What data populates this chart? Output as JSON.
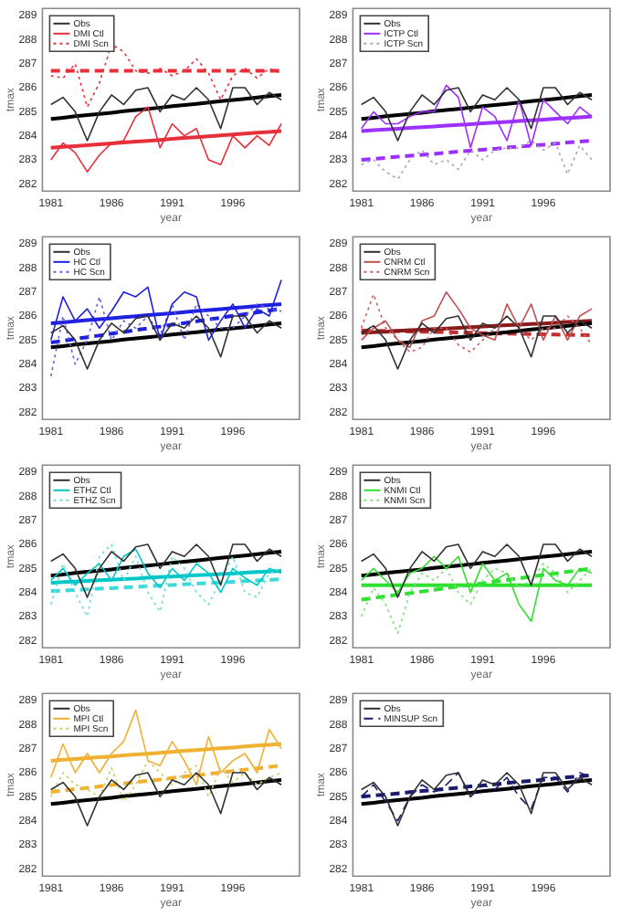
{
  "chart_data": [
    {
      "type": "line",
      "xlabel": "year",
      "ylabel": "tmax",
      "x": [
        1981,
        1982,
        1983,
        1984,
        1985,
        1986,
        1987,
        1988,
        1989,
        1990,
        1991,
        1992,
        1993,
        1994,
        1995,
        1996,
        1997,
        1998,
        1999,
        2000
      ],
      "xlim": [
        1980.3,
        2001.5
      ],
      "ylim": [
        281.7,
        289.3
      ],
      "xticks": [
        1981,
        1986,
        1991,
        1996
      ],
      "yticks": [
        282,
        283,
        284,
        285,
        286,
        287,
        288,
        289
      ],
      "legend": "top left",
      "marker": "none",
      "series": [
        {
          "name": "Obs",
          "color": "#303030",
          "line_style": "solid",
          "values": [
            285.3,
            285.6,
            285.0,
            283.8,
            285.0,
            285.7,
            285.3,
            285.9,
            286.0,
            285.0,
            285.7,
            285.5,
            286.0,
            285.5,
            284.3,
            286.0,
            286.0,
            285.3,
            285.8,
            285.5
          ]
        },
        {
          "name": "DMI Ctl",
          "color": "#e8303a",
          "line_style": "solid",
          "values": [
            283.0,
            283.7,
            283.3,
            282.5,
            283.2,
            283.7,
            283.8,
            284.8,
            285.2,
            283.5,
            284.5,
            284.0,
            284.3,
            283.0,
            282.8,
            284.0,
            283.5,
            284.0,
            283.6,
            284.5
          ]
        },
        {
          "name": "DMI Scn",
          "color": "#e8303a",
          "line_style": "dotted",
          "values": [
            286.5,
            286.4,
            287.0,
            285.2,
            286.2,
            287.8,
            287.5,
            286.7,
            286.6,
            286.8,
            286.5,
            286.7,
            287.2,
            286.6,
            285.5,
            286.5,
            286.8,
            286.4,
            286.8,
            286.6
          ]
        },
        {
          "color": "#000000",
          "line_style": "solid",
          "values": [
            284.7,
            284.75,
            284.81,
            284.86,
            284.91,
            284.96,
            285.02,
            285.07,
            285.12,
            285.17,
            285.23,
            285.28,
            285.33,
            285.38,
            285.44,
            285.49,
            285.54,
            285.59,
            285.65,
            285.7
          ]
        },
        {
          "color": "#e8303a",
          "line_style": "solid",
          "values": [
            283.5,
            283.54,
            283.57,
            283.61,
            283.65,
            283.68,
            283.72,
            283.76,
            283.79,
            283.83,
            283.87,
            283.91,
            283.94,
            283.98,
            284.02,
            284.05,
            284.09,
            284.13,
            284.16,
            284.2
          ]
        },
        {
          "color": "#e8303a",
          "line_style": "dashed",
          "values": [
            286.7,
            286.7,
            286.7,
            286.7,
            286.7,
            286.7,
            286.7,
            286.7,
            286.7,
            286.7,
            286.7,
            286.7,
            286.7,
            286.7,
            286.7,
            286.7,
            286.7,
            286.7,
            286.7,
            286.7
          ]
        }
      ]
    },
    {
      "type": "line",
      "xlabel": "year",
      "ylabel": "tmax",
      "x": [
        1981,
        1982,
        1983,
        1984,
        1985,
        1986,
        1987,
        1988,
        1989,
        1990,
        1991,
        1992,
        1993,
        1994,
        1995,
        1996,
        1997,
        1998,
        1999,
        2000
      ],
      "xlim": [
        1980.3,
        2001.5
      ],
      "ylim": [
        281.7,
        289.3
      ],
      "xticks": [
        1981,
        1986,
        1991,
        1996
      ],
      "yticks": [
        282,
        283,
        284,
        285,
        286,
        287,
        288,
        289
      ],
      "legend": "top left",
      "marker": "none",
      "series": [
        {
          "name": "Obs",
          "color": "#303030",
          "line_style": "solid",
          "values": [
            285.3,
            285.6,
            285.0,
            283.8,
            285.0,
            285.7,
            285.3,
            285.9,
            286.0,
            285.0,
            285.7,
            285.5,
            286.0,
            285.5,
            284.3,
            286.0,
            286.0,
            285.3,
            285.8,
            285.5
          ]
        },
        {
          "name": "ICTP Ctl",
          "color": "#9b30ff",
          "line_style": "solid",
          "values": [
            284.3,
            285.0,
            284.5,
            284.5,
            284.8,
            285.0,
            285.0,
            286.1,
            285.6,
            283.5,
            285.2,
            284.8,
            283.8,
            285.5,
            283.6,
            285.5,
            285.0,
            284.5,
            285.2,
            284.8
          ]
        },
        {
          "name": "ICTP Scn",
          "color": "#b0a0c0",
          "line_style": "dotted",
          "values": [
            282.8,
            283.0,
            282.5,
            282.2,
            283.0,
            283.4,
            282.8,
            283.0,
            282.6,
            283.4,
            283.0,
            283.4,
            283.5,
            283.5,
            283.8,
            283.4,
            283.7,
            282.4,
            283.6,
            283.0
          ]
        },
        {
          "color": "#000000",
          "line_style": "solid",
          "values": [
            284.7,
            284.75,
            284.81,
            284.86,
            284.91,
            284.96,
            285.02,
            285.07,
            285.12,
            285.17,
            285.23,
            285.28,
            285.33,
            285.38,
            285.44,
            285.49,
            285.54,
            285.59,
            285.65,
            285.7
          ]
        },
        {
          "color": "#9b30ff",
          "line_style": "solid",
          "values": [
            284.2,
            284.23,
            284.26,
            284.29,
            284.33,
            284.36,
            284.39,
            284.42,
            284.45,
            284.48,
            284.52,
            284.55,
            284.58,
            284.61,
            284.64,
            284.67,
            284.71,
            284.74,
            284.77,
            284.8
          ]
        },
        {
          "color": "#9b30ff",
          "line_style": "dashed",
          "values": [
            283.0,
            283.04,
            283.08,
            283.13,
            283.17,
            283.21,
            283.25,
            283.29,
            283.34,
            283.38,
            283.42,
            283.46,
            283.51,
            283.55,
            283.59,
            283.63,
            283.67,
            283.72,
            283.76,
            283.8
          ]
        }
      ]
    },
    {
      "type": "line",
      "xlabel": "year",
      "ylabel": "tmax",
      "x": [
        1981,
        1982,
        1983,
        1984,
        1985,
        1986,
        1987,
        1988,
        1989,
        1990,
        1991,
        1992,
        1993,
        1994,
        1995,
        1996,
        1997,
        1998,
        1999,
        2000
      ],
      "xlim": [
        1980.3,
        2001.5
      ],
      "ylim": [
        281.7,
        289.3
      ],
      "xticks": [
        1981,
        1986,
        1991,
        1996
      ],
      "yticks": [
        282,
        283,
        284,
        285,
        286,
        287,
        288,
        289
      ],
      "legend": "top left",
      "marker": "none",
      "series": [
        {
          "name": "Obs",
          "color": "#303030",
          "line_style": "solid",
          "values": [
            285.3,
            285.6,
            285.0,
            283.8,
            285.0,
            285.7,
            285.3,
            285.9,
            286.0,
            285.0,
            285.7,
            285.5,
            286.0,
            285.5,
            284.3,
            286.0,
            286.0,
            285.3,
            285.8,
            285.5
          ]
        },
        {
          "name": "HC Ctl",
          "color": "#2020e0",
          "line_style": "solid",
          "values": [
            285.0,
            286.8,
            285.8,
            286.3,
            285.5,
            286.2,
            287.0,
            286.8,
            287.2,
            285.0,
            286.5,
            287.0,
            286.8,
            285.0,
            285.8,
            286.5,
            285.5,
            286.3,
            286.0,
            287.5
          ]
        },
        {
          "name": "HC Scn",
          "color": "#6060e8",
          "line_style": "dotted",
          "values": [
            283.5,
            286.0,
            284.0,
            285.0,
            286.8,
            285.0,
            285.8,
            285.5,
            286.0,
            285.2,
            286.5,
            285.0,
            286.5,
            286.0,
            285.5,
            285.5,
            286.0,
            286.5,
            286.3,
            286.2
          ]
        },
        {
          "color": "#000000",
          "line_style": "solid",
          "values": [
            284.7,
            284.75,
            284.81,
            284.86,
            284.91,
            284.96,
            285.02,
            285.07,
            285.12,
            285.17,
            285.23,
            285.28,
            285.33,
            285.38,
            285.44,
            285.49,
            285.54,
            285.59,
            285.65,
            285.7
          ]
        },
        {
          "color": "#2020e0",
          "line_style": "solid",
          "values": [
            285.7,
            285.74,
            285.78,
            285.83,
            285.87,
            285.91,
            285.95,
            285.99,
            286.04,
            286.08,
            286.12,
            286.16,
            286.21,
            286.25,
            286.29,
            286.33,
            286.37,
            286.42,
            286.46,
            286.5
          ]
        },
        {
          "color": "#2020e0",
          "line_style": "dashed",
          "values": [
            284.9,
            284.97,
            285.05,
            285.12,
            285.19,
            285.27,
            285.34,
            285.42,
            285.49,
            285.56,
            285.64,
            285.71,
            285.78,
            285.86,
            285.93,
            286.01,
            286.08,
            286.15,
            286.23,
            286.3
          ]
        }
      ]
    },
    {
      "type": "line",
      "xlabel": "year",
      "ylabel": "tmax",
      "x": [
        1981,
        1982,
        1983,
        1984,
        1985,
        1986,
        1987,
        1988,
        1989,
        1990,
        1991,
        1992,
        1993,
        1994,
        1995,
        1996,
        1997,
        1998,
        1999,
        2000
      ],
      "xlim": [
        1980.3,
        2001.5
      ],
      "ylim": [
        281.7,
        289.3
      ],
      "xticks": [
        1981,
        1986,
        1991,
        1996
      ],
      "yticks": [
        282,
        283,
        284,
        285,
        286,
        287,
        288,
        289
      ],
      "legend": "top left",
      "marker": "none",
      "series": [
        {
          "name": "Obs",
          "color": "#303030",
          "line_style": "solid",
          "values": [
            285.3,
            285.6,
            285.0,
            283.8,
            285.0,
            285.7,
            285.3,
            285.9,
            286.0,
            285.0,
            285.7,
            285.5,
            286.0,
            285.5,
            284.3,
            286.0,
            286.0,
            285.3,
            285.8,
            285.5
          ]
        },
        {
          "name": "CNRM Ctl",
          "color": "#c05050",
          "line_style": "solid",
          "values": [
            285.0,
            285.5,
            285.8,
            285.0,
            284.7,
            285.8,
            286.0,
            287.0,
            286.3,
            285.5,
            285.2,
            285.0,
            286.5,
            285.5,
            286.5,
            285.0,
            286.0,
            285.0,
            286.0,
            286.3
          ]
        },
        {
          "name": "CNRM Scn",
          "color": "#d06060",
          "line_style": "dotted",
          "values": [
            285.5,
            286.9,
            285.5,
            285.0,
            284.5,
            284.7,
            285.5,
            285.5,
            284.8,
            284.5,
            285.0,
            285.5,
            286.0,
            285.5,
            285.0,
            285.5,
            285.5,
            286.0,
            285.5,
            284.8
          ]
        },
        {
          "color": "#000000",
          "line_style": "solid",
          "values": [
            284.7,
            284.75,
            284.81,
            284.86,
            284.91,
            284.96,
            285.02,
            285.07,
            285.12,
            285.17,
            285.23,
            285.28,
            285.33,
            285.38,
            285.44,
            285.49,
            285.54,
            285.59,
            285.65,
            285.7
          ]
        },
        {
          "color": "#8b1a1a",
          "line_style": "solid",
          "values": [
            285.3,
            285.33,
            285.35,
            285.38,
            285.41,
            285.43,
            285.46,
            285.48,
            285.51,
            285.54,
            285.56,
            285.59,
            285.62,
            285.64,
            285.67,
            285.69,
            285.72,
            285.75,
            285.77,
            285.8
          ]
        },
        {
          "color": "#c03030",
          "line_style": "dashed",
          "values": [
            285.4,
            285.39,
            285.38,
            285.37,
            285.36,
            285.35,
            285.34,
            285.33,
            285.32,
            285.31,
            285.29,
            285.28,
            285.27,
            285.26,
            285.25,
            285.24,
            285.23,
            285.22,
            285.21,
            285.2
          ]
        }
      ]
    },
    {
      "type": "line",
      "xlabel": "year",
      "ylabel": "tmax",
      "x": [
        1981,
        1982,
        1983,
        1984,
        1985,
        1986,
        1987,
        1988,
        1989,
        1990,
        1991,
        1992,
        1993,
        1994,
        1995,
        1996,
        1997,
        1998,
        1999,
        2000
      ],
      "xlim": [
        1980.3,
        2001.5
      ],
      "ylim": [
        281.7,
        289.3
      ],
      "xticks": [
        1981,
        1986,
        1991,
        1996
      ],
      "yticks": [
        282,
        283,
        284,
        285,
        286,
        287,
        288,
        289
      ],
      "legend": "top left",
      "marker": "none",
      "series": [
        {
          "name": "Obs",
          "color": "#303030",
          "line_style": "solid",
          "values": [
            285.3,
            285.6,
            285.0,
            283.8,
            285.0,
            285.7,
            285.3,
            285.9,
            286.0,
            285.0,
            285.7,
            285.5,
            286.0,
            285.5,
            284.3,
            286.0,
            286.0,
            285.3,
            285.8,
            285.5
          ]
        },
        {
          "name": "ETHZ Ctl",
          "color": "#00c8c8",
          "line_style": "solid",
          "values": [
            284.5,
            285.0,
            284.3,
            284.8,
            285.2,
            284.5,
            285.5,
            285.8,
            284.8,
            284.2,
            285.0,
            284.5,
            285.2,
            284.8,
            284.0,
            285.0,
            284.6,
            284.3,
            285.0,
            284.8
          ]
        },
        {
          "name": "ETHZ Scn",
          "color": "#70dcdc",
          "line_style": "dotted",
          "values": [
            283.5,
            285.2,
            284.0,
            283.0,
            285.5,
            286.0,
            284.5,
            285.5,
            284.0,
            283.2,
            285.5,
            285.0,
            284.0,
            283.5,
            284.5,
            285.5,
            284.0,
            283.8,
            284.8,
            285.0
          ]
        },
        {
          "color": "#000000",
          "line_style": "solid",
          "values": [
            284.7,
            284.75,
            284.81,
            284.86,
            284.91,
            284.96,
            285.02,
            285.07,
            285.12,
            285.17,
            285.23,
            285.28,
            285.33,
            285.38,
            285.44,
            285.49,
            285.54,
            285.59,
            285.65,
            285.7
          ]
        },
        {
          "color": "#00c8c8",
          "line_style": "solid",
          "values": [
            284.4,
            284.43,
            284.45,
            284.48,
            284.51,
            284.53,
            284.56,
            284.58,
            284.61,
            284.64,
            284.66,
            284.69,
            284.72,
            284.74,
            284.77,
            284.79,
            284.82,
            284.85,
            284.87,
            284.9
          ]
        },
        {
          "color": "#40d8d8",
          "line_style": "dashed",
          "values": [
            284.05,
            284.08,
            284.1,
            284.13,
            284.16,
            284.18,
            284.21,
            284.23,
            284.26,
            284.29,
            284.31,
            284.34,
            284.37,
            284.39,
            284.42,
            284.44,
            284.47,
            284.5,
            284.52,
            284.55
          ]
        }
      ]
    },
    {
      "type": "line",
      "xlabel": "year",
      "ylabel": "tmax",
      "x": [
        1981,
        1982,
        1983,
        1984,
        1985,
        1986,
        1987,
        1988,
        1989,
        1990,
        1991,
        1992,
        1993,
        1994,
        1995,
        1996,
        1997,
        1998,
        1999,
        2000
      ],
      "xlim": [
        1980.3,
        2001.5
      ],
      "ylim": [
        281.7,
        289.3
      ],
      "xticks": [
        1981,
        1986,
        1991,
        1996
      ],
      "yticks": [
        282,
        283,
        284,
        285,
        286,
        287,
        288,
        289
      ],
      "legend": "top left",
      "marker": "none",
      "series": [
        {
          "name": "Obs",
          "color": "#303030",
          "line_style": "solid",
          "values": [
            285.3,
            285.6,
            285.0,
            283.8,
            285.0,
            285.7,
            285.3,
            285.9,
            286.0,
            285.0,
            285.7,
            285.5,
            286.0,
            285.5,
            284.3,
            286.0,
            286.0,
            285.3,
            285.8,
            285.5
          ]
        },
        {
          "name": "KNMI Ctl",
          "color": "#30e030",
          "line_style": "solid",
          "values": [
            284.5,
            285.0,
            284.5,
            284.0,
            284.8,
            285.0,
            285.5,
            285.0,
            285.5,
            284.0,
            285.2,
            284.5,
            284.8,
            283.5,
            282.8,
            285.0,
            284.5,
            284.3,
            285.0,
            284.8
          ]
        },
        {
          "name": "KNMI Scn",
          "color": "#80e080",
          "line_style": "dotted",
          "values": [
            283.0,
            284.2,
            283.5,
            282.3,
            284.0,
            284.8,
            284.5,
            285.0,
            284.0,
            283.5,
            284.5,
            285.0,
            284.8,
            284.2,
            284.5,
            285.2,
            284.8,
            284.0,
            284.5,
            285.0
          ]
        },
        {
          "color": "#000000",
          "line_style": "solid",
          "values": [
            284.7,
            284.75,
            284.81,
            284.86,
            284.91,
            284.96,
            285.02,
            285.07,
            285.12,
            285.17,
            285.23,
            285.28,
            285.33,
            285.38,
            285.44,
            285.49,
            285.54,
            285.59,
            285.65,
            285.7
          ]
        },
        {
          "color": "#30e030",
          "line_style": "solid",
          "values": [
            284.3,
            284.3,
            284.3,
            284.3,
            284.3,
            284.3,
            284.3,
            284.3,
            284.3,
            284.3,
            284.3,
            284.3,
            284.3,
            284.3,
            284.3,
            284.3,
            284.3,
            284.3,
            284.3,
            284.3
          ]
        },
        {
          "color": "#30e030",
          "line_style": "dashed",
          "values": [
            283.7,
            283.77,
            283.84,
            283.91,
            283.97,
            284.04,
            284.11,
            284.18,
            284.25,
            284.32,
            284.38,
            284.45,
            284.52,
            284.59,
            284.66,
            284.73,
            284.79,
            284.86,
            284.93,
            285.0
          ]
        }
      ]
    },
    {
      "type": "line",
      "xlabel": "year",
      "ylabel": "tmax",
      "x": [
        1981,
        1982,
        1983,
        1984,
        1985,
        1986,
        1987,
        1988,
        1989,
        1990,
        1991,
        1992,
        1993,
        1994,
        1995,
        1996,
        1997,
        1998,
        1999,
        2000
      ],
      "xlim": [
        1980.3,
        2001.5
      ],
      "ylim": [
        281.7,
        289.3
      ],
      "xticks": [
        1981,
        1986,
        1991,
        1996
      ],
      "yticks": [
        282,
        283,
        284,
        285,
        286,
        287,
        288,
        289
      ],
      "legend": "top left",
      "marker": "none",
      "series": [
        {
          "name": "Obs",
          "color": "#303030",
          "line_style": "solid",
          "values": [
            285.3,
            285.6,
            285.0,
            283.8,
            285.0,
            285.7,
            285.3,
            285.9,
            286.0,
            285.0,
            285.7,
            285.5,
            286.0,
            285.5,
            284.3,
            286.0,
            286.0,
            285.3,
            285.8,
            285.5
          ]
        },
        {
          "name": "MPI Ctl",
          "color": "#f0b030",
          "line_style": "solid",
          "values": [
            285.8,
            287.2,
            286.0,
            286.8,
            286.0,
            286.8,
            287.3,
            288.6,
            286.5,
            286.3,
            287.3,
            286.5,
            285.5,
            287.5,
            286.0,
            286.5,
            286.8,
            286.0,
            287.8,
            287.0
          ]
        },
        {
          "name": "MPI Scn",
          "color": "#c8d060",
          "line_style": "dotted",
          "values": [
            285.0,
            286.0,
            285.5,
            285.3,
            285.0,
            286.2,
            284.8,
            285.5,
            286.5,
            286.0,
            285.5,
            286.0,
            286.3,
            285.0,
            286.2,
            285.6,
            286.0,
            285.5,
            285.8,
            286.0
          ]
        },
        {
          "color": "#000000",
          "line_style": "solid",
          "values": [
            284.7,
            284.75,
            284.81,
            284.86,
            284.91,
            284.96,
            285.02,
            285.07,
            285.12,
            285.17,
            285.23,
            285.28,
            285.33,
            285.38,
            285.44,
            285.49,
            285.54,
            285.59,
            285.65,
            285.7
          ]
        },
        {
          "color": "#f0b030",
          "line_style": "solid",
          "values": [
            286.5,
            286.54,
            286.57,
            286.61,
            286.65,
            286.68,
            286.72,
            286.76,
            286.79,
            286.83,
            286.87,
            286.91,
            286.94,
            286.98,
            287.02,
            287.05,
            287.09,
            287.13,
            287.16,
            287.2
          ]
        },
        {
          "color": "#f0b030",
          "line_style": "dashed",
          "values": [
            285.2,
            285.26,
            285.32,
            285.37,
            285.43,
            285.49,
            285.55,
            285.61,
            285.66,
            285.72,
            285.78,
            285.84,
            285.89,
            285.95,
            286.01,
            286.07,
            286.13,
            286.18,
            286.24,
            286.3
          ]
        }
      ]
    },
    {
      "type": "line",
      "xlabel": "year",
      "ylabel": "tmax",
      "x": [
        1981,
        1982,
        1983,
        1984,
        1985,
        1986,
        1987,
        1988,
        1989,
        1990,
        1991,
        1992,
        1993,
        1994,
        1995,
        1996,
        1997,
        1998,
        1999,
        2000
      ],
      "xlim": [
        1980.3,
        2001.5
      ],
      "ylim": [
        281.7,
        289.3
      ],
      "xticks": [
        1981,
        1986,
        1991,
        1996
      ],
      "yticks": [
        282,
        283,
        284,
        285,
        286,
        287,
        288,
        289
      ],
      "legend": "top left",
      "marker": "none",
      "series": [
        {
          "name": "Obs",
          "color": "#303030",
          "line_style": "solid",
          "values": [
            285.3,
            285.6,
            285.0,
            283.8,
            285.0,
            285.7,
            285.3,
            285.9,
            286.0,
            285.0,
            285.7,
            285.5,
            286.0,
            285.5,
            284.3,
            286.0,
            286.0,
            285.3,
            285.8,
            285.5
          ]
        },
        {
          "name": "MINSUP Scn",
          "color": "#1a1a6e",
          "line_style": "dashed",
          "values": [
            285.0,
            285.5,
            284.8,
            284.0,
            285.0,
            285.5,
            285.2,
            285.5,
            286.0,
            285.0,
            285.5,
            285.3,
            285.8,
            285.0,
            284.5,
            285.8,
            285.8,
            285.2,
            286.0,
            285.8
          ]
        },
        {
          "color": "#000000",
          "line_style": "solid",
          "values": [
            284.7,
            284.75,
            284.81,
            284.86,
            284.91,
            284.96,
            285.02,
            285.07,
            285.12,
            285.17,
            285.23,
            285.28,
            285.33,
            285.38,
            285.44,
            285.49,
            285.54,
            285.59,
            285.65,
            285.7
          ]
        },
        {
          "color": "#1a1a6e",
          "line_style": "dashed",
          "values": [
            285.0,
            285.05,
            285.09,
            285.14,
            285.19,
            285.24,
            285.28,
            285.33,
            285.38,
            285.43,
            285.47,
            285.52,
            285.57,
            285.62,
            285.66,
            285.71,
            285.76,
            285.81,
            285.85,
            285.9
          ]
        }
      ]
    }
  ]
}
